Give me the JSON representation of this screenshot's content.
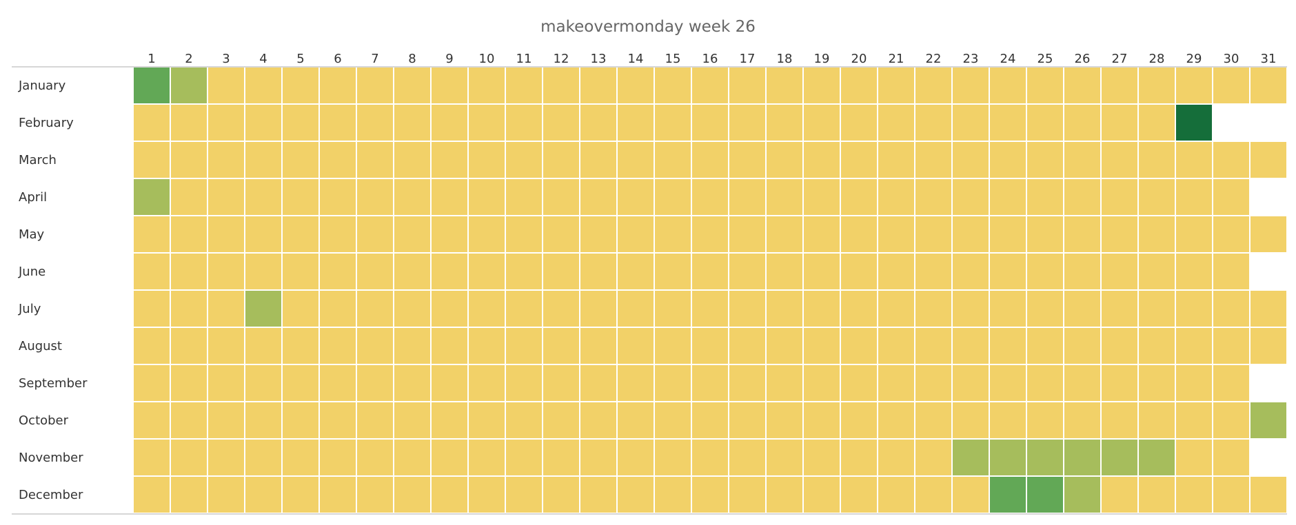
{
  "chart_data": {
    "type": "heatmap",
    "title": "makeovermonday week 26",
    "x_labels": [
      "1",
      "2",
      "3",
      "4",
      "5",
      "6",
      "7",
      "8",
      "9",
      "10",
      "11",
      "12",
      "13",
      "14",
      "15",
      "16",
      "17",
      "18",
      "19",
      "20",
      "21",
      "22",
      "23",
      "24",
      "25",
      "26",
      "27",
      "28",
      "29",
      "30",
      "31"
    ],
    "y_labels": [
      "January",
      "February",
      "March",
      "April",
      "May",
      "June",
      "July",
      "August",
      "September",
      "October",
      "November",
      "December"
    ],
    "days_in_month": [
      31,
      29,
      31,
      30,
      31,
      30,
      31,
      31,
      30,
      31,
      30,
      31
    ],
    "levels": [
      [
        3,
        1,
        0,
        0,
        0,
        0,
        0,
        0,
        0,
        0,
        0,
        0,
        0,
        0,
        0,
        0,
        0,
        0,
        0,
        0,
        0,
        0,
        0,
        0,
        0,
        0,
        0,
        0,
        0,
        0,
        0
      ],
      [
        0,
        0,
        0,
        0,
        0,
        0,
        0,
        0,
        0,
        0,
        0,
        0,
        0,
        0,
        0,
        0,
        0,
        0,
        0,
        0,
        0,
        0,
        0,
        0,
        0,
        0,
        0,
        0,
        5
      ],
      [
        0,
        0,
        0,
        0,
        0,
        0,
        0,
        0,
        0,
        0,
        0,
        0,
        0,
        0,
        0,
        0,
        0,
        0,
        0,
        0,
        0,
        0,
        0,
        0,
        0,
        0,
        0,
        0,
        0,
        0,
        0
      ],
      [
        1,
        0,
        0,
        0,
        0,
        0,
        0,
        0,
        0,
        0,
        0,
        0,
        0,
        0,
        0,
        0,
        0,
        0,
        0,
        0,
        0,
        0,
        0,
        0,
        0,
        0,
        0,
        0,
        0,
        0
      ],
      [
        0,
        0,
        0,
        0,
        0,
        0,
        0,
        0,
        0,
        0,
        0,
        0,
        0,
        0,
        0,
        0,
        0,
        0,
        0,
        0,
        0,
        0,
        0,
        0,
        0,
        0,
        0,
        0,
        0,
        0,
        0
      ],
      [
        0,
        0,
        0,
        0,
        0,
        0,
        0,
        0,
        0,
        0,
        0,
        0,
        0,
        0,
        0,
        0,
        0,
        0,
        0,
        0,
        0,
        0,
        0,
        0,
        0,
        0,
        0,
        0,
        0,
        0
      ],
      [
        0,
        0,
        0,
        1,
        0,
        0,
        0,
        0,
        0,
        0,
        0,
        0,
        0,
        0,
        0,
        0,
        0,
        0,
        0,
        0,
        0,
        0,
        0,
        0,
        0,
        0,
        0,
        0,
        0,
        0,
        0
      ],
      [
        0,
        0,
        0,
        0,
        0,
        0,
        0,
        0,
        0,
        0,
        0,
        0,
        0,
        0,
        0,
        0,
        0,
        0,
        0,
        0,
        0,
        0,
        0,
        0,
        0,
        0,
        0,
        0,
        0,
        0,
        0
      ],
      [
        0,
        0,
        0,
        0,
        0,
        0,
        0,
        0,
        0,
        0,
        0,
        0,
        0,
        0,
        0,
        0,
        0,
        0,
        0,
        0,
        0,
        0,
        0,
        0,
        0,
        0,
        0,
        0,
        0,
        0
      ],
      [
        0,
        0,
        0,
        0,
        0,
        0,
        0,
        0,
        0,
        0,
        0,
        0,
        0,
        0,
        0,
        0,
        0,
        0,
        0,
        0,
        0,
        0,
        0,
        0,
        0,
        0,
        0,
        0,
        0,
        0,
        1
      ],
      [
        0,
        0,
        0,
        0,
        0,
        0,
        0,
        0,
        0,
        0,
        0,
        0,
        0,
        0,
        0,
        0,
        0,
        0,
        0,
        0,
        0,
        0,
        1,
        1,
        1,
        1,
        1,
        1,
        0,
        0
      ],
      [
        0,
        0,
        0,
        0,
        0,
        0,
        0,
        0,
        0,
        0,
        0,
        0,
        0,
        0,
        0,
        0,
        0,
        0,
        0,
        0,
        0,
        0,
        0,
        3,
        3,
        1,
        0,
        0,
        0,
        0,
        0
      ]
    ],
    "colors": {
      "0": "#f2d168",
      "1": "#a6bd5c",
      "3": "#62a856",
      "5": "#156e3a"
    },
    "gridline_color": "#ffffff",
    "axis_line_color": "#c8c8c8"
  }
}
